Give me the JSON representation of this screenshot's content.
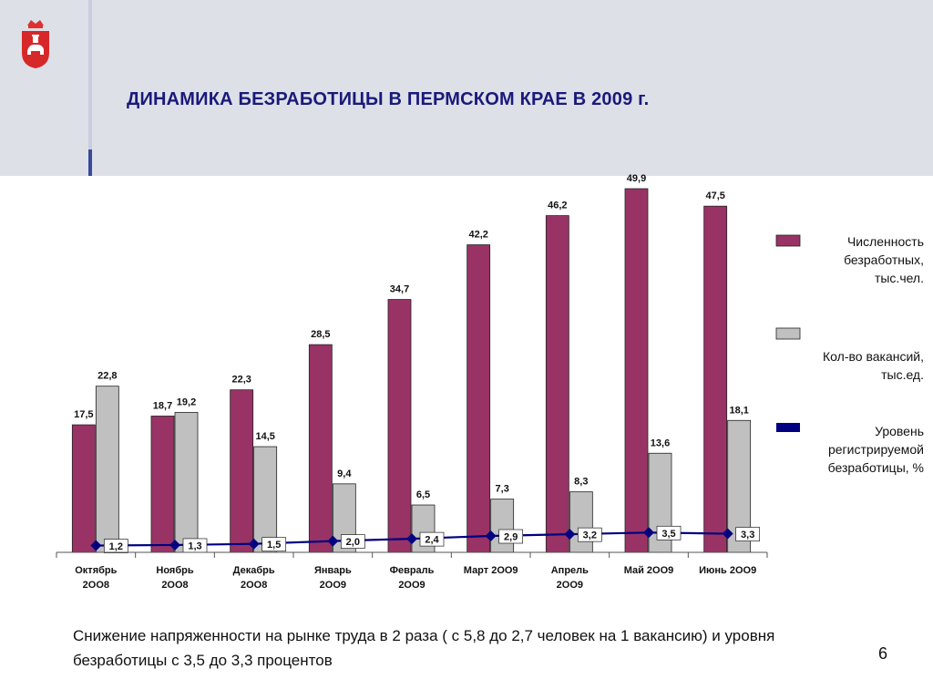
{
  "slide": {
    "title": "ДИНАМИКА БЕЗРАБОТИЦЫ В ПЕРМСКОМ КРАЕ В 2009 г.",
    "footer_text": "Снижение напряженности на рынке труда в 2 раза ( с 5,8 до 2,7 человек на 1 вакансию) и уровня безработицы с 3,5 до 3,3 процентов",
    "page_number": "6",
    "logo_icon": "perm-krai-coat-of-arms-icon"
  },
  "colors": {
    "header_band": "#dde0e7",
    "title": "#1a1a7a",
    "unemployed_bar": "#993366",
    "vacancies_bar": "#c0c0c0",
    "rate_line": "#000080"
  },
  "chart_data": {
    "type": "bar",
    "categories": [
      "Октябрь 2OO8",
      "Ноябрь 2OO8",
      "Декабрь 2OO8",
      "Январь 2OO9",
      "Февраль 2OO9",
      "Март 2OO9",
      "Апрель 2OO9",
      "Май 2OO9",
      "Июнь 2OO9"
    ],
    "category_lines": [
      [
        "Октябрь",
        "2OO8"
      ],
      [
        "Ноябрь",
        "2OO8"
      ],
      [
        "Декабрь",
        "2OO8"
      ],
      [
        "Январь",
        "2OO9"
      ],
      [
        "Февраль",
        "2OO9"
      ],
      [
        "Март 2OO9"
      ],
      [
        "Апрель",
        "2OO9"
      ],
      [
        "Май 2OO9"
      ],
      [
        "Июнь 2OO9"
      ]
    ],
    "series": [
      {
        "name": "Численность безработных, тыс.чел.",
        "legend_lines": [
          "Численность",
          "безработных,",
          "тыс.чел."
        ],
        "kind": "bar",
        "color": "#993366",
        "values": [
          17.5,
          18.7,
          22.3,
          28.5,
          34.7,
          42.2,
          46.2,
          49.9,
          47.5
        ],
        "labels": [
          "17,5",
          "18,7",
          "22,3",
          "28,5",
          "34,7",
          "42,2",
          "46,2",
          "49,9",
          "47,5"
        ]
      },
      {
        "name": "Кол-во вакансий, тыс.ед.",
        "legend_lines": [
          "Кол-во вакансий,",
          "тыс.ед."
        ],
        "kind": "bar",
        "color": "#c0c0c0",
        "values": [
          22.8,
          19.2,
          14.5,
          9.4,
          6.5,
          7.3,
          8.3,
          13.6,
          18.1
        ],
        "labels": [
          "22,8",
          "19,2",
          "14,5",
          "9,4",
          "6,5",
          "7,3",
          "8,3",
          "13,6",
          "18,1"
        ]
      },
      {
        "name": "Уровень регистрируемой безработицы, %",
        "legend_lines": [
          "Уровень",
          "регистрируемой",
          "безработицы, %"
        ],
        "kind": "line",
        "color": "#000080",
        "values": [
          1.2,
          1.3,
          1.5,
          2.0,
          2.4,
          2.9,
          3.2,
          3.5,
          3.3
        ],
        "labels": [
          "1,2",
          "1,3",
          "1,5",
          "2,0",
          "2,4",
          "2,9",
          "3,2",
          "3,5",
          "3,3"
        ]
      }
    ],
    "grid": false,
    "legend_position": "right"
  }
}
